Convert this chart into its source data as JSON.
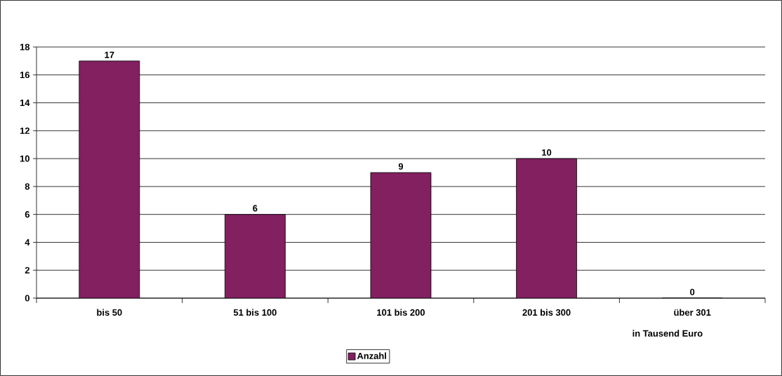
{
  "chart_data": {
    "type": "bar",
    "xlabel": "in Tausend Euro",
    "categories": [
      "bis 50",
      "51 bis 100",
      "101 bis 200",
      "201 bis 300",
      "über 301"
    ],
    "series": [
      {
        "name": "Anzahl",
        "color": "#822060",
        "values": [
          17,
          6,
          9,
          10,
          0
        ]
      }
    ],
    "ylim": [
      0,
      18
    ],
    "yticks": [
      0,
      2,
      4,
      6,
      8,
      10,
      12,
      14,
      16,
      18
    ],
    "grid": "y",
    "legend": "bottom",
    "data_labels": true
  }
}
